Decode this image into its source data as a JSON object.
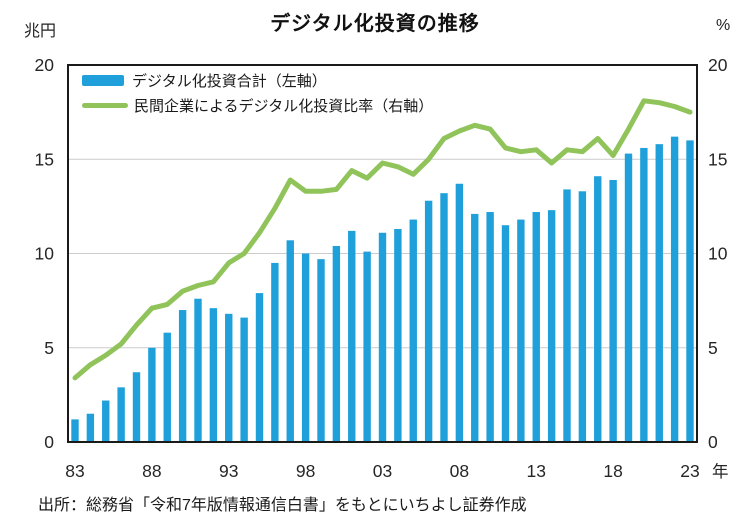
{
  "title": "デジタル化投資の推移",
  "unit_left": "兆円",
  "unit_right": "%",
  "x_axis_suffix": "年",
  "source": "出所：総務省「令和7年版情報通信白書」をもとにいちよし証券作成",
  "legend": [
    {
      "label": "デジタル化投資合計（左軸）",
      "color": "#1fa0db",
      "type": "bar"
    },
    {
      "label": "民間企業によるデジタル化投資比率（右軸）",
      "color": "#90c35a",
      "type": "line"
    }
  ],
  "colors": {
    "bar": "#1fa0db",
    "line": "#90c35a",
    "grid": "#cccccc",
    "border": "#1a1a1a",
    "axis_text": "#262626"
  },
  "chart_data": {
    "type": "bar",
    "subtype": "bar+line dual axis",
    "title": "デジタル化投資の推移",
    "x": [
      1983,
      1984,
      1985,
      1986,
      1987,
      1988,
      1989,
      1990,
      1991,
      1992,
      1993,
      1994,
      1995,
      1996,
      1997,
      1998,
      1999,
      2000,
      2001,
      2002,
      2003,
      2004,
      2005,
      2006,
      2007,
      2008,
      2009,
      2010,
      2011,
      2012,
      2013,
      2014,
      2015,
      2016,
      2017,
      2018,
      2019,
      2020,
      2021,
      2022,
      2023
    ],
    "x_tick_labels": [
      "83",
      "88",
      "93",
      "98",
      "03",
      "08",
      "13",
      "18",
      "23"
    ],
    "x_tick_indices": [
      0,
      5,
      10,
      15,
      20,
      25,
      30,
      35,
      40
    ],
    "series": [
      {
        "name": "デジタル化投資合計（左軸）",
        "type": "bar",
        "axis": "left",
        "unit": "兆円",
        "values": [
          1.2,
          1.5,
          2.2,
          2.9,
          3.7,
          5.0,
          5.8,
          7.0,
          7.6,
          7.1,
          6.8,
          6.6,
          7.9,
          9.5,
          10.7,
          10.0,
          9.7,
          10.4,
          11.2,
          10.1,
          11.1,
          11.3,
          11.8,
          12.8,
          13.2,
          13.7,
          12.1,
          12.2,
          11.5,
          11.8,
          12.2,
          12.3,
          13.4,
          13.3,
          14.1,
          13.9,
          15.3,
          15.6,
          15.8,
          16.2,
          16.0
        ]
      },
      {
        "name": "民間企業によるデジタル化投資比率（右軸）",
        "type": "line",
        "axis": "right",
        "unit": "%",
        "values": [
          3.4,
          4.1,
          4.6,
          5.2,
          6.2,
          7.1,
          7.3,
          8.0,
          8.3,
          8.5,
          9.5,
          10.0,
          11.1,
          12.4,
          13.9,
          13.3,
          13.3,
          13.4,
          14.4,
          14.0,
          14.8,
          14.6,
          14.2,
          15.0,
          16.1,
          16.5,
          16.8,
          16.6,
          15.6,
          15.4,
          15.5,
          14.8,
          15.5,
          15.4,
          16.1,
          15.2,
          16.6,
          18.1,
          18.0,
          17.8,
          17.5
        ]
      }
    ],
    "ylim_left": [
      0,
      20
    ],
    "ylim_right": [
      0,
      20
    ],
    "yticks": [
      0,
      5,
      10,
      15,
      20
    ],
    "grid": true,
    "legend_position": "top-left-inside"
  }
}
